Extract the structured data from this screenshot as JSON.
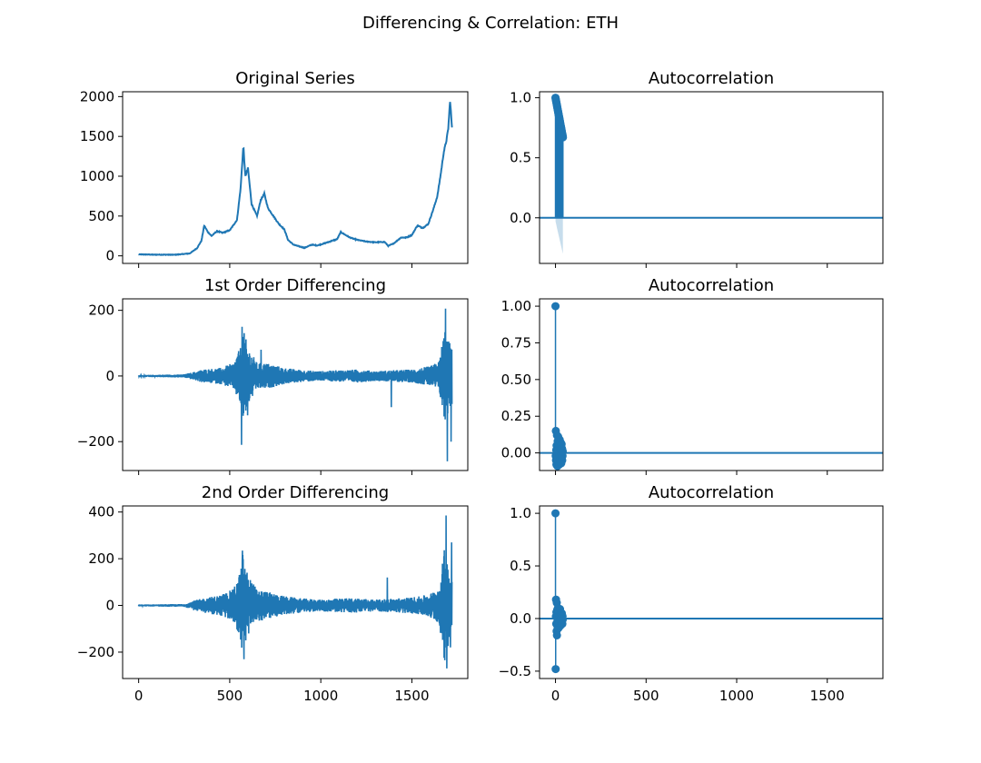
{
  "figure": {
    "title": "Differencing & Correlation: ETH"
  },
  "colors": {
    "series": "#1f77b4",
    "band": "#1f77b4",
    "axis": "#000000"
  },
  "chart_data": [
    {
      "type": "line",
      "title": "Original Series",
      "xlim": [
        -88,
        1807
      ],
      "ylim": [
        -95,
        2061
      ],
      "xticks": [
        0,
        500,
        1000,
        1500
      ],
      "yticks": [
        0,
        500,
        1000,
        1500,
        2000
      ],
      "ytick_labels": [
        "0",
        "500",
        "1000",
        "1500",
        "2000"
      ],
      "show_xtick_labels": false,
      "noise_amp": 6,
      "points": [
        [
          0,
          18
        ],
        [
          80,
          15
        ],
        [
          200,
          14
        ],
        [
          280,
          30
        ],
        [
          320,
          95
        ],
        [
          345,
          190
        ],
        [
          360,
          380
        ],
        [
          380,
          300
        ],
        [
          400,
          250
        ],
        [
          430,
          310
        ],
        [
          460,
          290
        ],
        [
          500,
          320
        ],
        [
          540,
          450
        ],
        [
          560,
          850
        ],
        [
          575,
          1380
        ],
        [
          585,
          1000
        ],
        [
          600,
          1100
        ],
        [
          620,
          650
        ],
        [
          650,
          500
        ],
        [
          670,
          700
        ],
        [
          690,
          780
        ],
        [
          710,
          600
        ],
        [
          740,
          500
        ],
        [
          770,
          400
        ],
        [
          800,
          330
        ],
        [
          820,
          200
        ],
        [
          850,
          140
        ],
        [
          880,
          120
        ],
        [
          910,
          100
        ],
        [
          950,
          140
        ],
        [
          980,
          130
        ],
        [
          1010,
          150
        ],
        [
          1050,
          180
        ],
        [
          1090,
          210
        ],
        [
          1110,
          300
        ],
        [
          1130,
          270
        ],
        [
          1160,
          230
        ],
        [
          1200,
          200
        ],
        [
          1250,
          180
        ],
        [
          1300,
          170
        ],
        [
          1350,
          175
        ],
        [
          1370,
          125
        ],
        [
          1400,
          155
        ],
        [
          1440,
          230
        ],
        [
          1470,
          230
        ],
        [
          1500,
          260
        ],
        [
          1530,
          380
        ],
        [
          1560,
          350
        ],
        [
          1590,
          400
        ],
        [
          1620,
          600
        ],
        [
          1640,
          750
        ],
        [
          1660,
          1050
        ],
        [
          1675,
          1300
        ],
        [
          1690,
          1450
        ],
        [
          1700,
          1600
        ],
        [
          1710,
          1950
        ],
        [
          1720,
          1600
        ]
      ]
    },
    {
      "type": "bar",
      "title": "Autocorrelation",
      "xlim": [
        -88,
        1807
      ],
      "ylim": [
        -0.38,
        1.05
      ],
      "xticks": [
        0,
        500,
        1000,
        1500
      ],
      "yticks": [
        0,
        0.5,
        1.0
      ],
      "ytick_labels": [
        "0.0",
        "0.5",
        "1.0"
      ],
      "show_xtick_labels": false,
      "lags": [
        0,
        41
      ],
      "acf_start": 1.0,
      "acf_end": 0.67,
      "confidence_band": {
        "start": 0.03,
        "end": 0.3
      }
    },
    {
      "type": "line",
      "title": "1st Order Differencing",
      "xlim": [
        -88,
        1807
      ],
      "ylim": [
        -288,
        235
      ],
      "xticks": [
        0,
        500,
        1000,
        1500
      ],
      "yticks": [
        -200,
        0,
        200
      ],
      "ytick_labels": [
        "−200",
        "0",
        "200"
      ],
      "show_xtick_labels": false,
      "envelope": [
        [
          0,
          3
        ],
        [
          250,
          5
        ],
        [
          300,
          12
        ],
        [
          350,
          20
        ],
        [
          450,
          25
        ],
        [
          520,
          40
        ],
        [
          560,
          90
        ],
        [
          570,
          150
        ],
        [
          600,
          90
        ],
        [
          650,
          40
        ],
        [
          700,
          40
        ],
        [
          800,
          25
        ],
        [
          900,
          18
        ],
        [
          1000,
          15
        ],
        [
          1100,
          18
        ],
        [
          1200,
          20
        ],
        [
          1300,
          15
        ],
        [
          1400,
          18
        ],
        [
          1500,
          20
        ],
        [
          1550,
          25
        ],
        [
          1600,
          30
        ],
        [
          1650,
          45
        ],
        [
          1680,
          150
        ],
        [
          1700,
          110
        ],
        [
          1720,
          90
        ]
      ],
      "spikes": [
        [
          565,
          -210
        ],
        [
          568,
          150
        ],
        [
          598,
          -120
        ],
        [
          672,
          80
        ],
        [
          1387,
          -95
        ],
        [
          1685,
          205
        ],
        [
          1695,
          -260
        ],
        [
          1715,
          -200
        ]
      ]
    },
    {
      "type": "scatter",
      "title": "Autocorrelation",
      "xlim": [
        -88,
        1807
      ],
      "ylim": [
        -0.12,
        1.05
      ],
      "xticks": [
        0,
        500,
        1000,
        1500
      ],
      "yticks": [
        0,
        0.25,
        0.5,
        0.75,
        1.0
      ],
      "ytick_labels": [
        "0.00",
        "0.25",
        "0.50",
        "0.75",
        "1.00"
      ],
      "show_xtick_labels": false,
      "points": [
        [
          0,
          1.0
        ],
        [
          1,
          -0.02
        ],
        [
          2,
          0.15
        ],
        [
          3,
          -0.05
        ],
        [
          4,
          0.02
        ],
        [
          5,
          -0.08
        ],
        [
          6,
          0.05
        ],
        [
          7,
          -0.03
        ],
        [
          8,
          0.12
        ],
        [
          9,
          -0.06
        ],
        [
          10,
          0.04
        ],
        [
          11,
          -0.09
        ],
        [
          12,
          0.08
        ],
        [
          13,
          -0.04
        ],
        [
          14,
          0.03
        ],
        [
          15,
          0.11
        ],
        [
          16,
          -0.07
        ],
        [
          17,
          0.02
        ],
        [
          18,
          -0.03
        ],
        [
          19,
          0.06
        ],
        [
          20,
          -0.08
        ],
        [
          21,
          0.04
        ],
        [
          22,
          -0.02
        ],
        [
          23,
          0.09
        ],
        [
          24,
          -0.05
        ],
        [
          25,
          0.03
        ],
        [
          26,
          -0.06
        ],
        [
          27,
          0.05
        ],
        [
          28,
          -0.04
        ],
        [
          29,
          0.07
        ],
        [
          30,
          -0.02
        ],
        [
          31,
          0.04
        ],
        [
          32,
          -0.07
        ],
        [
          33,
          0.02
        ],
        [
          34,
          0.06
        ],
        [
          35,
          -0.03
        ],
        [
          36,
          0.03
        ],
        [
          37,
          -0.05
        ],
        [
          38,
          0.02
        ],
        [
          39,
          -0.02
        ],
        [
          40,
          0.01
        ]
      ]
    },
    {
      "type": "line",
      "title": "2nd Order Differencing",
      "xlim": [
        -88,
        1807
      ],
      "ylim": [
        -313,
        426
      ],
      "xticks": [
        0,
        500,
        1000,
        1500
      ],
      "yticks": [
        -200,
        0,
        200,
        400
      ],
      "ytick_labels": [
        "−200",
        "0",
        "200",
        "400"
      ],
      "show_xtick_labels": true,
      "xtick_labels": [
        "0",
        "500",
        "1000",
        "1500"
      ],
      "envelope": [
        [
          0,
          4
        ],
        [
          250,
          6
        ],
        [
          300,
          20
        ],
        [
          350,
          30
        ],
        [
          450,
          45
        ],
        [
          520,
          70
        ],
        [
          560,
          150
        ],
        [
          570,
          230
        ],
        [
          600,
          130
        ],
        [
          650,
          70
        ],
        [
          700,
          60
        ],
        [
          800,
          40
        ],
        [
          900,
          30
        ],
        [
          1000,
          25
        ],
        [
          1100,
          30
        ],
        [
          1200,
          32
        ],
        [
          1300,
          25
        ],
        [
          1400,
          30
        ],
        [
          1500,
          35
        ],
        [
          1550,
          40
        ],
        [
          1600,
          50
        ],
        [
          1650,
          80
        ],
        [
          1680,
          250
        ],
        [
          1700,
          170
        ],
        [
          1720,
          140
        ]
      ],
      "spikes": [
        [
          570,
          235
        ],
        [
          578,
          -230
        ],
        [
          1365,
          120
        ],
        [
          1688,
          385
        ],
        [
          1692,
          -270
        ],
        [
          1718,
          270
        ],
        [
          1712,
          -180
        ]
      ]
    },
    {
      "type": "scatter",
      "title": "Autocorrelation",
      "xlim": [
        -88,
        1807
      ],
      "ylim": [
        -0.57,
        1.07
      ],
      "xticks": [
        0,
        500,
        1000,
        1500
      ],
      "yticks": [
        -0.5,
        0,
        0.5,
        1.0
      ],
      "ytick_labels": [
        "−0.5",
        "0.0",
        "0.5",
        "1.0"
      ],
      "show_xtick_labels": true,
      "xtick_labels": [
        "0",
        "500",
        "1000",
        "1500"
      ],
      "points": [
        [
          0,
          1.0
        ],
        [
          1,
          -0.48
        ],
        [
          2,
          0.02
        ],
        [
          3,
          0.18
        ],
        [
          4,
          -0.05
        ],
        [
          5,
          0.06
        ],
        [
          6,
          -0.12
        ],
        [
          7,
          0.15
        ],
        [
          8,
          -0.16
        ],
        [
          9,
          0.08
        ],
        [
          10,
          -0.03
        ],
        [
          11,
          0.05
        ],
        [
          12,
          -0.08
        ],
        [
          13,
          0.1
        ],
        [
          14,
          -0.06
        ],
        [
          15,
          0.02
        ],
        [
          16,
          0.04
        ],
        [
          17,
          -0.09
        ],
        [
          18,
          0.07
        ],
        [
          19,
          -0.02
        ],
        [
          20,
          0.03
        ],
        [
          21,
          -0.05
        ],
        [
          22,
          0.06
        ],
        [
          23,
          -0.04
        ],
        [
          24,
          0.02
        ],
        [
          25,
          0.09
        ],
        [
          26,
          -0.07
        ],
        [
          27,
          0.03
        ],
        [
          28,
          -0.02
        ],
        [
          29,
          0.05
        ],
        [
          30,
          -0.06
        ],
        [
          31,
          0.04
        ],
        [
          32,
          -0.03
        ],
        [
          33,
          0.02
        ],
        [
          34,
          -0.04
        ],
        [
          35,
          0.05
        ],
        [
          36,
          -0.02
        ],
        [
          37,
          0.03
        ],
        [
          38,
          -0.05
        ],
        [
          39,
          0.02
        ],
        [
          40,
          -0.01
        ]
      ]
    }
  ]
}
